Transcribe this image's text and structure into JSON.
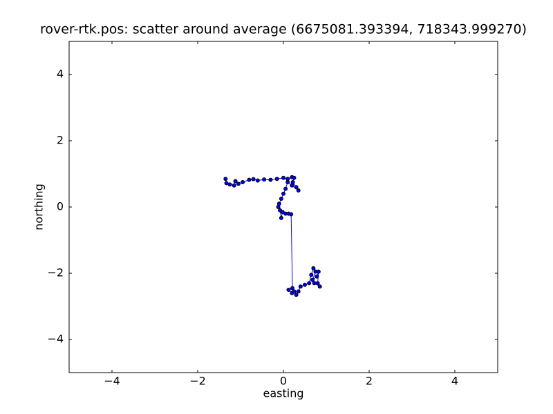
{
  "chart_data": {
    "type": "line",
    "title": "rover-rtk.pos: scatter around average (6675081.393394, 718343.999270)",
    "xlabel": "easting",
    "ylabel": "northing",
    "color": "#0000ff",
    "marker_edge_color": "#000000",
    "xlim": [
      -5,
      5
    ],
    "ylim": [
      -5,
      5
    ],
    "xticks": [
      {
        "value": -4,
        "label": "−4"
      },
      {
        "value": -2,
        "label": "−2"
      },
      0,
      2,
      4
    ],
    "yticks": [
      {
        "value": -4,
        "label": "−4"
      },
      {
        "value": -2,
        "label": "−2"
      },
      0,
      2,
      4
    ],
    "x": [
      -1.35,
      -1.33,
      -1.25,
      -1.15,
      -1.12,
      -1.05,
      -0.95,
      -0.8,
      -0.7,
      -0.6,
      -0.45,
      -0.3,
      -0.15,
      0.0,
      0.1,
      0.2,
      0.25,
      0.22,
      0.3,
      0.35,
      0.2,
      0.1,
      0.05,
      0.0,
      -0.05,
      -0.1,
      -0.12,
      -0.08,
      -0.05,
      -0.02,
      0.05,
      0.12,
      0.18,
      0.21,
      0.12,
      0.2,
      0.25,
      0.3,
      0.35,
      0.4,
      0.5,
      0.6,
      0.65,
      0.7,
      0.75,
      0.68,
      0.78,
      0.82,
      0.8,
      0.85,
      0.72
    ],
    "values": [
      0.85,
      0.72,
      0.68,
      0.65,
      0.78,
      0.7,
      0.75,
      0.82,
      0.84,
      0.8,
      0.83,
      0.82,
      0.85,
      0.88,
      0.85,
      0.9,
      0.88,
      0.75,
      0.6,
      0.5,
      0.65,
      0.75,
      0.55,
      0.4,
      0.25,
      0.1,
      0.0,
      -0.1,
      -0.33,
      -0.15,
      -0.2,
      -0.2,
      -0.22,
      -2.45,
      -2.5,
      -2.6,
      -2.55,
      -2.65,
      -2.55,
      -2.4,
      -2.35,
      -2.3,
      -2.05,
      -1.85,
      -1.95,
      -2.2,
      -2.1,
      -1.95,
      -2.3,
      -2.4,
      -2.3
    ]
  }
}
